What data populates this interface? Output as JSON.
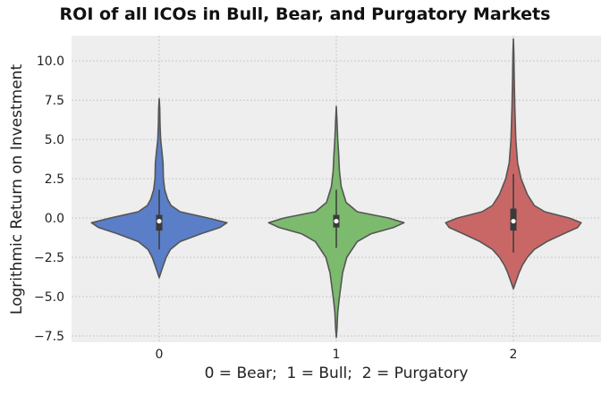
{
  "chart_data": {
    "type": "violin",
    "title": "ROI of all ICOs in Bull, Bear, and Purgatory Markets",
    "xlabel": "0 = Bear;  1 = Bull;  2 = Purgatory",
    "ylabel": "Logrithmic Return on Investment",
    "categories": [
      "0",
      "1",
      "2"
    ],
    "ylim": [
      -7.9,
      11.6
    ],
    "yticks": [
      -7.5,
      -5.0,
      -2.5,
      0.0,
      2.5,
      5.0,
      7.5,
      10.0
    ],
    "ytick_labels": [
      "−7.5",
      "−5.0",
      "−2.5",
      "0.0",
      "2.5",
      "5.0",
      "7.5",
      "10.0"
    ],
    "grid": true,
    "colors": [
      "#5a7ec8",
      "#7cba6e",
      "#c96767"
    ],
    "violins": [
      {
        "category": "0",
        "color": "#5a7ec8",
        "min": -3.8,
        "max": 7.6,
        "q1": -0.8,
        "median": -0.2,
        "q3": 0.2,
        "whisker_low": -2.0,
        "whisker_high": 1.8,
        "profile": [
          [
            -3.8,
            0.0
          ],
          [
            -3.4,
            0.03
          ],
          [
            -3.0,
            0.06
          ],
          [
            -2.5,
            0.1
          ],
          [
            -2.0,
            0.16
          ],
          [
            -1.5,
            0.3
          ],
          [
            -1.0,
            0.6
          ],
          [
            -0.6,
            0.87
          ],
          [
            -0.3,
            0.97
          ],
          [
            0.0,
            0.7
          ],
          [
            0.4,
            0.3
          ],
          [
            0.8,
            0.17
          ],
          [
            1.2,
            0.12
          ],
          [
            1.8,
            0.08
          ],
          [
            2.5,
            0.06
          ],
          [
            3.5,
            0.055
          ],
          [
            4.2,
            0.04
          ],
          [
            5.0,
            0.02
          ],
          [
            6.0,
            0.012
          ],
          [
            7.0,
            0.008
          ],
          [
            7.6,
            0.0
          ]
        ]
      },
      {
        "category": "1",
        "color": "#7cba6e",
        "min": -7.6,
        "max": 7.1,
        "q1": -0.6,
        "median": -0.2,
        "q3": 0.2,
        "whisker_low": -1.9,
        "whisker_high": 1.8,
        "profile": [
          [
            -7.6,
            0.0
          ],
          [
            -7.0,
            0.01
          ],
          [
            -6.0,
            0.02
          ],
          [
            -5.2,
            0.04
          ],
          [
            -4.5,
            0.06
          ],
          [
            -3.5,
            0.09
          ],
          [
            -2.5,
            0.15
          ],
          [
            -1.5,
            0.3
          ],
          [
            -1.0,
            0.5
          ],
          [
            -0.6,
            0.82
          ],
          [
            -0.3,
            0.97
          ],
          [
            0.0,
            0.75
          ],
          [
            0.4,
            0.3
          ],
          [
            1.0,
            0.14
          ],
          [
            2.0,
            0.07
          ],
          [
            3.0,
            0.045
          ],
          [
            4.0,
            0.035
          ],
          [
            5.0,
            0.02
          ],
          [
            6.0,
            0.012
          ],
          [
            7.1,
            0.0
          ]
        ]
      },
      {
        "category": "2",
        "color": "#c96767",
        "min": -4.5,
        "max": 11.4,
        "q1": -0.8,
        "median": -0.2,
        "q3": 0.6,
        "whisker_low": -2.2,
        "whisker_high": 2.8,
        "profile": [
          [
            -4.5,
            0.0
          ],
          [
            -4.0,
            0.04
          ],
          [
            -3.5,
            0.08
          ],
          [
            -3.0,
            0.13
          ],
          [
            -2.5,
            0.2
          ],
          [
            -2.0,
            0.3
          ],
          [
            -1.5,
            0.48
          ],
          [
            -1.0,
            0.72
          ],
          [
            -0.6,
            0.92
          ],
          [
            -0.3,
            0.97
          ],
          [
            0.0,
            0.8
          ],
          [
            0.4,
            0.45
          ],
          [
            0.8,
            0.3
          ],
          [
            1.5,
            0.2
          ],
          [
            2.5,
            0.11
          ],
          [
            3.5,
            0.06
          ],
          [
            5.0,
            0.035
          ],
          [
            7.0,
            0.02
          ],
          [
            9.0,
            0.012
          ],
          [
            10.5,
            0.006
          ],
          [
            11.4,
            0.0
          ]
        ]
      }
    ]
  }
}
